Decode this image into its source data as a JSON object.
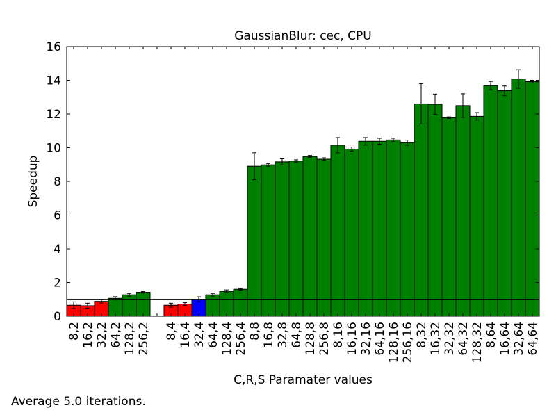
{
  "chart_data": {
    "type": "bar",
    "title": "GaussianBlur: cec, CPU",
    "xlabel": "C,R,S Paramater values",
    "ylabel": "Speedup",
    "ylim": [
      0,
      16
    ],
    "yticks": [
      "0",
      "2",
      "4",
      "6",
      "8",
      "10",
      "12",
      "14",
      "16"
    ],
    "reference_line": 1.0,
    "colors": {
      "below": "#ff0000",
      "baseline": "#0000ff",
      "above": "#008000"
    },
    "categories": [
      "8,2",
      "16,2",
      "32,2",
      "64,2",
      "128,2",
      "256,2",
      "",
      "8,4",
      "16,4",
      "32,4",
      "64,4",
      "128,4",
      "256,4",
      "8,8",
      "16,8",
      "32,8",
      "64,8",
      "128,8",
      "256,8",
      "8,16",
      "16,16",
      "32,16",
      "64,16",
      "128,16",
      "256,16",
      "8,32",
      "16,32",
      "32,32",
      "64,32",
      "128,32",
      "8,64",
      "16,64",
      "32,64",
      "64,64"
    ],
    "values": [
      0.65,
      0.62,
      0.88,
      1.06,
      1.27,
      1.42,
      null,
      0.65,
      0.72,
      1.0,
      1.27,
      1.48,
      1.6,
      8.9,
      8.98,
      9.16,
      9.2,
      9.48,
      9.32,
      10.15,
      9.92,
      10.38,
      10.38,
      10.46,
      10.3,
      12.6,
      12.58,
      11.78,
      12.5,
      11.86,
      13.68,
      13.38,
      14.08,
      13.92
    ],
    "errors": [
      0.2,
      0.15,
      0.1,
      0.1,
      0.08,
      0.05,
      null,
      0.12,
      0.08,
      0.15,
      0.08,
      0.08,
      0.05,
      0.8,
      0.08,
      0.18,
      0.08,
      0.06,
      0.08,
      0.45,
      0.12,
      0.22,
      0.18,
      0.1,
      0.15,
      1.2,
      0.6,
      0.05,
      0.7,
      0.22,
      0.25,
      0.28,
      0.55,
      0.08
    ],
    "bar_colors": [
      "below",
      "below",
      "below",
      "above",
      "above",
      "above",
      null,
      "below",
      "below",
      "baseline",
      "above",
      "above",
      "above",
      "above",
      "above",
      "above",
      "above",
      "above",
      "above",
      "above",
      "above",
      "above",
      "above",
      "above",
      "above",
      "above",
      "above",
      "above",
      "above",
      "above",
      "above",
      "above",
      "above",
      "above"
    ]
  },
  "footnote": "Average 5.0 iterations."
}
